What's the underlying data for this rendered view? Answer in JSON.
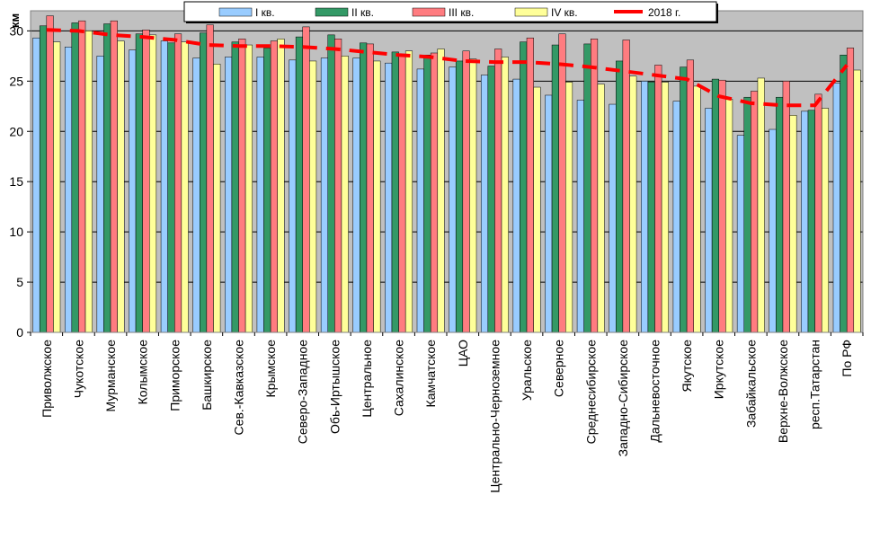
{
  "chart_data": {
    "type": "bar",
    "ylabel": "км",
    "ylim": [
      0,
      32
    ],
    "yticks": [
      0,
      5,
      10,
      15,
      20,
      25,
      30
    ],
    "grid": true,
    "legend_position": "top",
    "categories": [
      "Приволжское",
      "Чукотское",
      "Мурманское",
      "Колымское",
      "Приморское",
      "Башкирское",
      "Сев.-Кавказское",
      "Крымское",
      "Северо-Западное",
      "Обь-Иртышское",
      "Центральное",
      "Сахалинское",
      "Камчатское",
      "ЦАО",
      "Центрально-Черноземное",
      "Уральское",
      "Северное",
      "Среднесибирское",
      "Западно-Сибирское",
      "Дальневосточное",
      "Якутское",
      "Иркутское",
      "Забайкальское",
      "Верхне-Волжское",
      "респ.Татарстан",
      "По РФ"
    ],
    "series": [
      {
        "name": "I кв.",
        "color": "#99ccff",
        "values": [
          29.3,
          28.4,
          27.5,
          28.1,
          29.0,
          27.3,
          27.4,
          27.4,
          27.1,
          27.3,
          27.3,
          26.8,
          26.2,
          26.4,
          25.6,
          25.2,
          23.6,
          23.1,
          22.7,
          25.0,
          23.0,
          22.3,
          19.6,
          20.2,
          22.0,
          24.8
        ]
      },
      {
        "name": "II кв.",
        "color": "#339966",
        "values": [
          30.5,
          30.8,
          30.7,
          29.7,
          28.8,
          29.8,
          28.9,
          28.3,
          29.4,
          29.6,
          28.8,
          27.9,
          27.6,
          27.0,
          26.5,
          28.9,
          28.6,
          28.7,
          27.0,
          24.9,
          26.4,
          25.2,
          23.4,
          23.4,
          22.1,
          27.6
        ]
      },
      {
        "name": "III кв.",
        "color": "#ff7c80",
        "values": [
          31.5,
          31.0,
          31.0,
          30.1,
          29.7,
          30.6,
          29.2,
          29.0,
          30.4,
          29.2,
          28.7,
          27.5,
          27.8,
          28.0,
          28.2,
          29.3,
          29.7,
          29.2,
          29.1,
          26.6,
          27.1,
          25.1,
          24.0,
          25.0,
          23.7,
          28.3
        ]
      },
      {
        "name": "IV кв.",
        "color": "#ffff99",
        "values": [
          28.9,
          30.0,
          29.0,
          29.6,
          28.9,
          26.7,
          28.6,
          29.2,
          27.0,
          27.5,
          27.0,
          28.0,
          28.2,
          27.2,
          27.4,
          24.4,
          24.9,
          24.7,
          25.5,
          24.9,
          24.5,
          23.2,
          25.3,
          21.6,
          22.3,
          26.1
        ]
      }
    ],
    "line_series": {
      "name": "2018 г.",
      "color": "#ff0000",
      "values": [
        30.1,
        30.0,
        29.6,
        29.4,
        29.1,
        28.6,
        28.5,
        28.5,
        28.4,
        28.2,
        27.9,
        27.6,
        27.4,
        27.0,
        26.9,
        26.9,
        26.7,
        26.4,
        26.0,
        25.6,
        25.2,
        23.5,
        22.8,
        22.6,
        22.6,
        26.6
      ]
    }
  }
}
